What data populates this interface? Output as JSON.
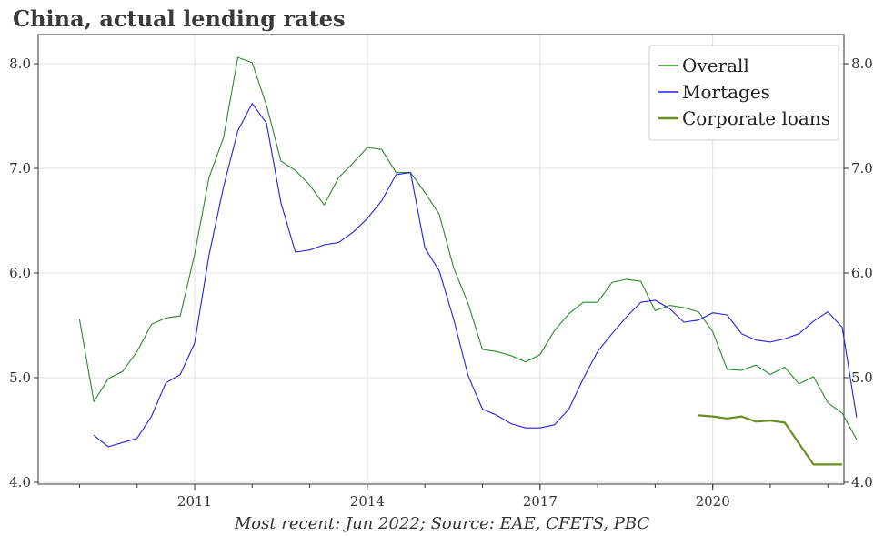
{
  "title": "China, actual lending rates",
  "footnote": "Most recent: Jun 2022; Source: EAE, CFETS, PBC",
  "chart_data": {
    "type": "line",
    "title": "China, actual lending rates",
    "xlabel": "",
    "ylabel": "",
    "ylim": [
      4.0,
      8.2
    ],
    "xlim": [
      2008.75,
      2022.95
    ],
    "x_tick_labels": [
      "2011",
      "2014",
      "2017",
      "2020"
    ],
    "y_tick_labels": [
      "4.0",
      "5.0",
      "6.0",
      "7.0",
      "8.0"
    ],
    "grid": true,
    "legend_position": "top-right",
    "colors": {
      "overall": "#2a8a2a",
      "mortgages": "#2222dd",
      "corporate": "#6b8e23"
    },
    "series": [
      {
        "name": "Overall",
        "x": [
          2009.0,
          2009.25,
          2009.5,
          2009.75,
          2010.0,
          2010.25,
          2010.5,
          2010.75,
          2011.0,
          2011.25,
          2011.5,
          2011.75,
          2012.0,
          2012.25,
          2012.5,
          2012.75,
          2013.0,
          2013.25,
          2013.5,
          2013.75,
          2014.0,
          2014.25,
          2014.5,
          2014.75,
          2015.0,
          2015.25,
          2015.5,
          2015.75,
          2016.0,
          2016.25,
          2016.5,
          2016.75,
          2017.0,
          2017.25,
          2017.5,
          2017.75,
          2018.0,
          2018.25,
          2018.5,
          2018.75,
          2019.0,
          2019.25,
          2019.5,
          2019.75,
          2020.0,
          2020.25,
          2020.5,
          2020.75,
          2021.0,
          2021.25,
          2021.5,
          2021.75,
          2022.0,
          2022.25,
          2022.5
        ],
        "values": [
          5.56,
          4.77,
          4.99,
          5.06,
          5.25,
          5.51,
          5.57,
          5.59,
          6.18,
          6.91,
          7.29,
          8.06,
          8.01,
          7.6,
          7.07,
          6.98,
          6.84,
          6.65,
          6.91,
          7.05,
          7.2,
          7.18,
          6.96,
          6.96,
          6.77,
          6.56,
          6.05,
          5.71,
          5.27,
          5.25,
          5.21,
          5.15,
          5.22,
          5.45,
          5.61,
          5.72,
          5.72,
          5.91,
          5.94,
          5.92,
          5.64,
          5.69,
          5.67,
          5.63,
          5.44,
          5.08,
          5.07,
          5.12,
          5.03,
          5.1,
          4.94,
          5.01,
          4.76,
          4.66,
          4.41
        ]
      },
      {
        "name": "Mortages",
        "x": [
          2009.25,
          2009.5,
          2009.75,
          2010.0,
          2010.25,
          2010.5,
          2010.75,
          2011.0,
          2011.25,
          2011.5,
          2011.75,
          2012.0,
          2012.25,
          2012.5,
          2012.75,
          2013.0,
          2013.25,
          2013.5,
          2013.75,
          2014.0,
          2014.25,
          2014.5,
          2014.75,
          2015.0,
          2015.25,
          2015.5,
          2015.75,
          2016.0,
          2016.25,
          2016.5,
          2016.75,
          2017.0,
          2017.25,
          2017.5,
          2017.75,
          2018.0,
          2018.25,
          2018.5,
          2018.75,
          2019.0,
          2019.25,
          2019.5,
          2019.75,
          2020.0,
          2020.25,
          2020.5,
          2020.75,
          2021.0,
          2021.25,
          2021.5,
          2021.75,
          2022.0,
          2022.25,
          2022.5
        ],
        "values": [
          4.45,
          4.34,
          4.38,
          4.42,
          4.63,
          4.95,
          5.03,
          5.33,
          6.17,
          6.82,
          7.36,
          7.62,
          7.43,
          6.67,
          6.2,
          6.22,
          6.27,
          6.29,
          6.39,
          6.52,
          6.69,
          6.94,
          6.96,
          6.24,
          6.02,
          5.56,
          5.02,
          4.7,
          4.64,
          4.56,
          4.52,
          4.52,
          4.55,
          4.7,
          4.99,
          5.25,
          5.42,
          5.58,
          5.72,
          5.74,
          5.66,
          5.53,
          5.55,
          5.62,
          5.6,
          5.42,
          5.36,
          5.34,
          5.37,
          5.42,
          5.54,
          5.63,
          5.48,
          4.62
        ]
      },
      {
        "name": "Corporate loans",
        "x": [
          2019.75,
          2020.0,
          2020.25,
          2020.5,
          2020.75,
          2021.0,
          2021.25,
          2021.5,
          2021.75,
          2022.0,
          2022.25
        ],
        "values": [
          4.64,
          4.63,
          4.61,
          4.63,
          4.58,
          4.59,
          4.57,
          4.37,
          4.17,
          4.17,
          4.17
        ]
      }
    ]
  }
}
